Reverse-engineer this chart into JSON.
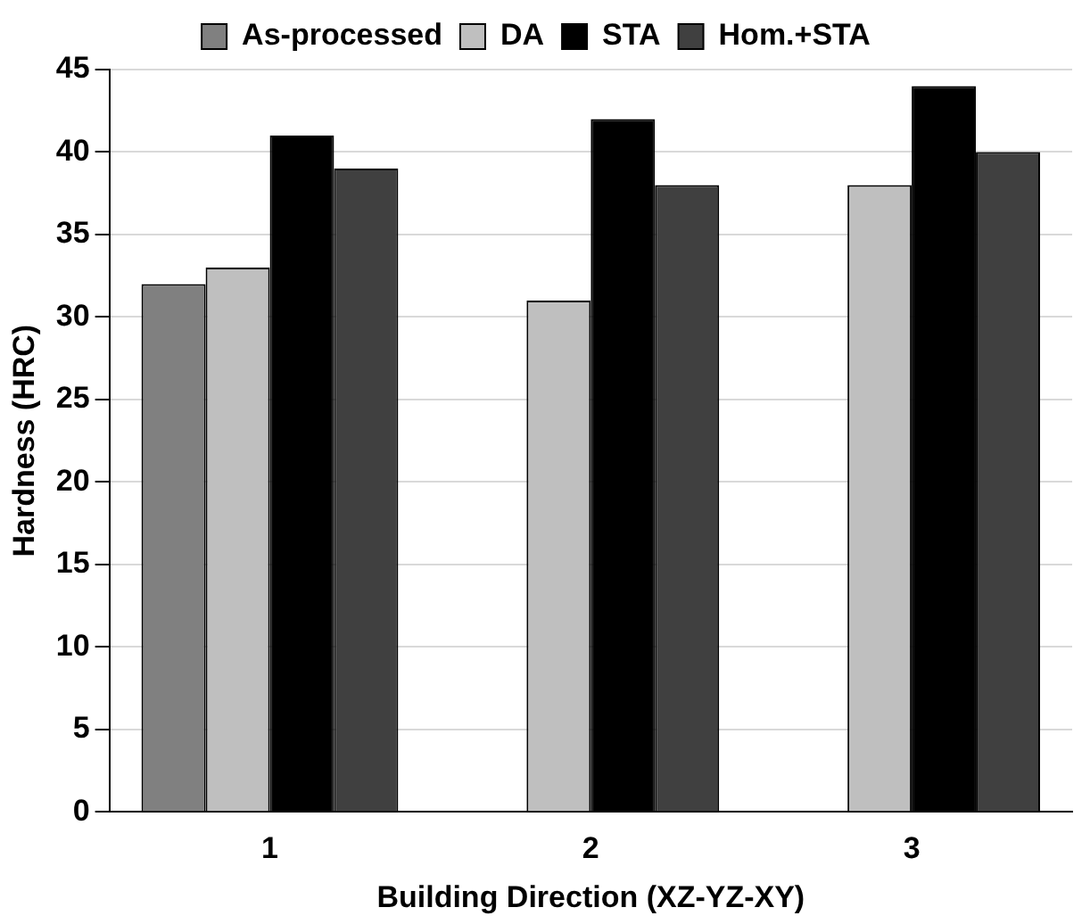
{
  "chart_data": {
    "type": "bar",
    "xlabel": "Building Direction (XZ-YZ-XY)",
    "ylabel": "Hardness (HRC)",
    "categories": [
      "1",
      "2",
      "3"
    ],
    "series": [
      {
        "name": "As-processed",
        "color": "#808080",
        "values": [
          32,
          null,
          null
        ]
      },
      {
        "name": "DA",
        "color": "#bfbfbf",
        "values": [
          33,
          31,
          38
        ]
      },
      {
        "name": "STA",
        "color": "#000000",
        "values": [
          41,
          42,
          44
        ]
      },
      {
        "name": "Hom.+STA",
        "color": "#404040",
        "values": [
          39,
          38,
          40
        ]
      }
    ],
    "ylim": [
      0,
      45
    ],
    "yticks": [
      0,
      5,
      10,
      15,
      20,
      25,
      30,
      35,
      40,
      45
    ],
    "grid": "y",
    "legend": "top"
  }
}
